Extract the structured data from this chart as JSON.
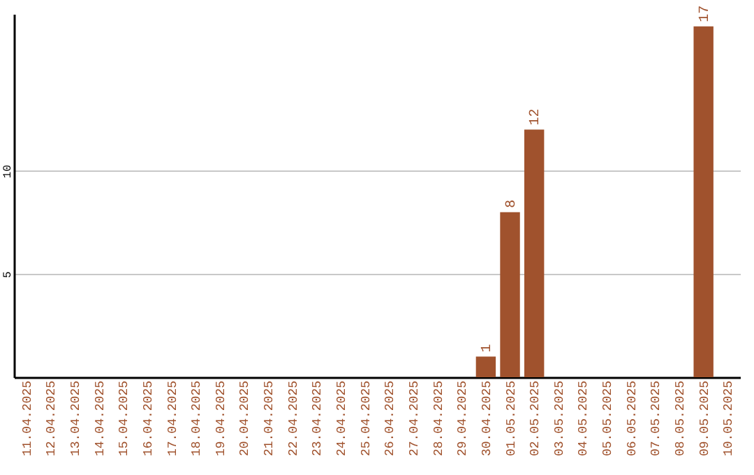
{
  "chart_data": {
    "type": "bar",
    "categories": [
      "11.04.2025",
      "12.04.2025",
      "13.04.2025",
      "14.04.2025",
      "15.04.2025",
      "16.04.2025",
      "17.04.2025",
      "18.04.2025",
      "19.04.2025",
      "20.04.2025",
      "21.04.2025",
      "22.04.2025",
      "23.04.2025",
      "24.04.2025",
      "25.04.2025",
      "26.04.2025",
      "27.04.2025",
      "28.04.2025",
      "29.04.2025",
      "30.04.2025",
      "01.05.2025",
      "02.05.2025",
      "03.05.2025",
      "04.05.2025",
      "05.05.2025",
      "06.05.2025",
      "07.05.2025",
      "08.05.2025",
      "09.05.2025",
      "10.05.2025"
    ],
    "values": [
      0,
      0,
      0,
      0,
      0,
      0,
      0,
      0,
      0,
      0,
      0,
      0,
      0,
      0,
      0,
      0,
      0,
      0,
      0,
      1,
      8,
      12,
      0,
      0,
      0,
      0,
      0,
      0,
      17,
      0
    ],
    "value_labels": [
      null,
      null,
      null,
      null,
      null,
      null,
      null,
      null,
      null,
      null,
      null,
      null,
      null,
      null,
      null,
      null,
      null,
      null,
      null,
      "1",
      "8",
      "12",
      null,
      null,
      null,
      null,
      null,
      null,
      "17",
      null
    ],
    "color": "#a0522d",
    "ylim": [
      0,
      17.6
    ],
    "yticks": [
      5,
      10
    ],
    "grid": "y"
  }
}
